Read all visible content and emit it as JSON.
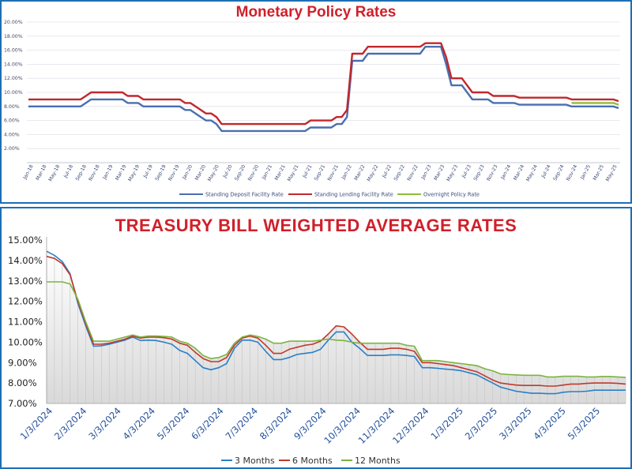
{
  "chart_data": [
    {
      "type": "line",
      "title": "Monetary Policy Rates",
      "ylim": [
        0,
        20
      ],
      "y_tick_labels": [
        "",
        "2.00%",
        "4.00%",
        "6.00%",
        "8.00%",
        "10.00%",
        "12.00%",
        "14.00%",
        "16.00%",
        "18.00%",
        "20.00%"
      ],
      "x_tick_labels": [
        "Jan-18",
        "Mar-18",
        "May-18",
        "Jul-18",
        "Sep-18",
        "Nov-18",
        "Jan-19",
        "Mar-19",
        "May-19",
        "Jul-19",
        "Sep-19",
        "Nov-19",
        "Jan-20",
        "Mar-20",
        "May-20",
        "Jul-20",
        "Sep-20",
        "Nov-20",
        "Jan-21",
        "Mar-21",
        "May-21",
        "Jul-21",
        "Sep-21",
        "Nov-21",
        "Jan-22",
        "Mar-22",
        "May-22",
        "Jul-22",
        "Sep-22",
        "Nov-22",
        "Jan-23",
        "Mar-23",
        "May-23",
        "Jul-23",
        "Sep-23",
        "Nov-23",
        "Jan-24",
        "Mar-24",
        "May-24",
        "Jul-24",
        "Sep-24",
        "Nov-24",
        "Jan-25",
        "Mar-25",
        "May-25"
      ],
      "series": [
        {
          "name": "Standing Deposit Facility Rate",
          "color": "#4a6fb0",
          "values": [
            8.0,
            8.0,
            8.0,
            8.0,
            8.0,
            8.0,
            8.0,
            8.0,
            8.0,
            8.0,
            8.0,
            8.5,
            9.0,
            9.0,
            9.0,
            9.0,
            9.0,
            9.0,
            9.0,
            8.5,
            8.5,
            8.5,
            8.0,
            8.0,
            8.0,
            8.0,
            8.0,
            8.0,
            8.0,
            8.0,
            7.5,
            7.5,
            7.0,
            6.5,
            6.0,
            6.0,
            5.5,
            4.5,
            4.5,
            4.5,
            4.5,
            4.5,
            4.5,
            4.5,
            4.5,
            4.5,
            4.5,
            4.5,
            4.5,
            4.5,
            4.5,
            4.5,
            4.5,
            4.5,
            5.0,
            5.0,
            5.0,
            5.0,
            5.0,
            5.5,
            5.5,
            6.5,
            14.5,
            14.5,
            14.5,
            15.5,
            15.5,
            15.5,
            15.5,
            15.5,
            15.5,
            15.5,
            15.5,
            15.5,
            15.5,
            15.5,
            16.5,
            16.5,
            16.5,
            16.5,
            14.0,
            11.0,
            11.0,
            11.0,
            10.0,
            9.0,
            9.0,
            9.0,
            9.0,
            8.5,
            8.5,
            8.5,
            8.5,
            8.5,
            8.25,
            8.25,
            8.25,
            8.25,
            8.25,
            8.25,
            8.25,
            8.25,
            8.25,
            8.25,
            8.0,
            8.0,
            8.0,
            8.0,
            8.0,
            8.0,
            8.0,
            8.0,
            8.0,
            7.75
          ]
        },
        {
          "name": "Standing Lending Facility Rate",
          "color": "#c0282d",
          "values": [
            9.0,
            9.0,
            9.0,
            9.0,
            9.0,
            9.0,
            9.0,
            9.0,
            9.0,
            9.0,
            9.0,
            9.5,
            10.0,
            10.0,
            10.0,
            10.0,
            10.0,
            10.0,
            10.0,
            9.5,
            9.5,
            9.5,
            9.0,
            9.0,
            9.0,
            9.0,
            9.0,
            9.0,
            9.0,
            9.0,
            8.5,
            8.5,
            8.0,
            7.5,
            7.0,
            7.0,
            6.5,
            5.5,
            5.5,
            5.5,
            5.5,
            5.5,
            5.5,
            5.5,
            5.5,
            5.5,
            5.5,
            5.5,
            5.5,
            5.5,
            5.5,
            5.5,
            5.5,
            5.5,
            6.0,
            6.0,
            6.0,
            6.0,
            6.0,
            6.5,
            6.5,
            7.5,
            15.5,
            15.5,
            15.5,
            16.5,
            16.5,
            16.5,
            16.5,
            16.5,
            16.5,
            16.5,
            16.5,
            16.5,
            16.5,
            16.5,
            17.0,
            17.0,
            17.0,
            17.0,
            15.0,
            12.0,
            12.0,
            12.0,
            11.0,
            10.0,
            10.0,
            10.0,
            10.0,
            9.5,
            9.5,
            9.5,
            9.5,
            9.5,
            9.25,
            9.25,
            9.25,
            9.25,
            9.25,
            9.25,
            9.25,
            9.25,
            9.25,
            9.25,
            9.0,
            9.0,
            9.0,
            9.0,
            9.0,
            9.0,
            9.0,
            9.0,
            9.0,
            8.75
          ]
        },
        {
          "name": "Overnight Policy Rate",
          "color": "#8fbc3a",
          "values": [
            null,
            null,
            null,
            null,
            null,
            null,
            null,
            null,
            null,
            null,
            null,
            null,
            null,
            null,
            null,
            null,
            null,
            null,
            null,
            null,
            null,
            null,
            null,
            null,
            null,
            null,
            null,
            null,
            null,
            null,
            null,
            null,
            null,
            null,
            null,
            null,
            null,
            null,
            null,
            null,
            null,
            null,
            null,
            null,
            null,
            null,
            null,
            null,
            null,
            null,
            null,
            null,
            null,
            null,
            null,
            null,
            null,
            null,
            null,
            null,
            null,
            null,
            null,
            null,
            null,
            null,
            null,
            null,
            null,
            null,
            null,
            null,
            null,
            null,
            null,
            null,
            null,
            null,
            null,
            null,
            null,
            null,
            null,
            null,
            null,
            null,
            null,
            null,
            null,
            null,
            null,
            null,
            null,
            null,
            null,
            null,
            null,
            null,
            null,
            null,
            null,
            null,
            null,
            null,
            8.5,
            8.5,
            8.5,
            8.5,
            8.5,
            8.5,
            8.5,
            8.5,
            8.5,
            8.25
          ]
        }
      ],
      "legend": "bottom"
    },
    {
      "type": "area",
      "title": "TREASURY BILL WEIGHTED AVERAGE RATES",
      "ylim": [
        7,
        15
      ],
      "y_tick_labels": [
        "7.00%",
        "8.00%",
        "9.00%",
        "10.00%",
        "11.00%",
        "12.00%",
        "13.00%",
        "14.00%",
        "15.00%"
      ],
      "x_tick_labels": [
        "1/3/2024",
        "2/3/2024",
        "3/3/2024",
        "4/3/2024",
        "5/3/2024",
        "6/3/2024",
        "7/3/2024",
        "8/3/2024",
        "9/3/2024",
        "10/3/2024",
        "11/3/2024",
        "12/3/2024",
        "1/3/2025",
        "2/3/2025",
        "3/3/2025",
        "4/3/2025",
        "5/3/2025"
      ],
      "series": [
        {
          "name": "3 Months",
          "color": "#2a7fc8",
          "values": [
            14.45,
            14.25,
            13.95,
            13.35,
            11.9,
            10.8,
            9.8,
            9.82,
            9.9,
            10.0,
            10.1,
            10.25,
            10.08,
            10.1,
            10.08,
            10.0,
            9.9,
            9.6,
            9.45,
            9.1,
            8.75,
            8.65,
            8.75,
            8.95,
            9.7,
            10.1,
            10.1,
            10.0,
            9.55,
            9.15,
            9.15,
            9.25,
            9.4,
            9.45,
            9.5,
            9.65,
            10.1,
            10.5,
            10.5,
            10.0,
            9.7,
            9.35,
            9.35,
            9.35,
            9.38,
            9.38,
            9.35,
            9.3,
            8.75,
            8.75,
            8.72,
            8.68,
            8.65,
            8.6,
            8.5,
            8.4,
            8.2,
            8.0,
            7.8,
            7.7,
            7.6,
            7.55,
            7.5,
            7.5,
            7.48,
            7.48,
            7.55,
            7.58,
            7.58,
            7.6,
            7.65,
            7.65,
            7.65,
            7.65,
            7.65
          ]
        },
        {
          "name": "6 Months",
          "color": "#c0392b",
          "values": [
            14.2,
            14.1,
            13.85,
            13.3,
            12.0,
            10.9,
            9.9,
            9.9,
            9.95,
            10.05,
            10.15,
            10.3,
            10.2,
            10.25,
            10.25,
            10.22,
            10.15,
            9.95,
            9.85,
            9.5,
            9.2,
            9.05,
            9.05,
            9.25,
            9.85,
            10.2,
            10.3,
            10.2,
            9.85,
            9.45,
            9.45,
            9.65,
            9.75,
            9.85,
            9.9,
            10.05,
            10.4,
            10.8,
            10.75,
            10.4,
            10.0,
            9.65,
            9.65,
            9.65,
            9.7,
            9.7,
            9.65,
            9.55,
            9.0,
            9.0,
            8.95,
            8.9,
            8.85,
            8.75,
            8.65,
            8.55,
            8.35,
            8.15,
            8.0,
            7.95,
            7.9,
            7.88,
            7.88,
            7.88,
            7.85,
            7.85,
            7.9,
            7.95,
            7.95,
            7.98,
            8.0,
            8.0,
            8.0,
            7.98,
            7.95
          ]
        },
        {
          "name": "12 Months",
          "color": "#7cb342",
          "values": [
            12.95,
            12.95,
            12.95,
            12.85,
            12.1,
            11.0,
            10.05,
            10.05,
            10.05,
            10.15,
            10.25,
            10.35,
            10.25,
            10.3,
            10.3,
            10.28,
            10.25,
            10.05,
            9.95,
            9.7,
            9.35,
            9.2,
            9.25,
            9.4,
            9.95,
            10.25,
            10.35,
            10.28,
            10.15,
            9.95,
            9.95,
            10.05,
            10.05,
            10.05,
            10.05,
            10.1,
            10.15,
            10.1,
            10.08,
            10.0,
            9.95,
            9.95,
            9.95,
            9.95,
            9.95,
            9.95,
            9.85,
            9.8,
            9.1,
            9.1,
            9.1,
            9.05,
            9.0,
            8.95,
            8.9,
            8.85,
            8.7,
            8.6,
            8.45,
            8.42,
            8.4,
            8.38,
            8.38,
            8.38,
            8.3,
            8.3,
            8.33,
            8.33,
            8.33,
            8.3,
            8.3,
            8.32,
            8.32,
            8.3,
            8.28
          ]
        }
      ],
      "legend": "bottom"
    }
  ]
}
